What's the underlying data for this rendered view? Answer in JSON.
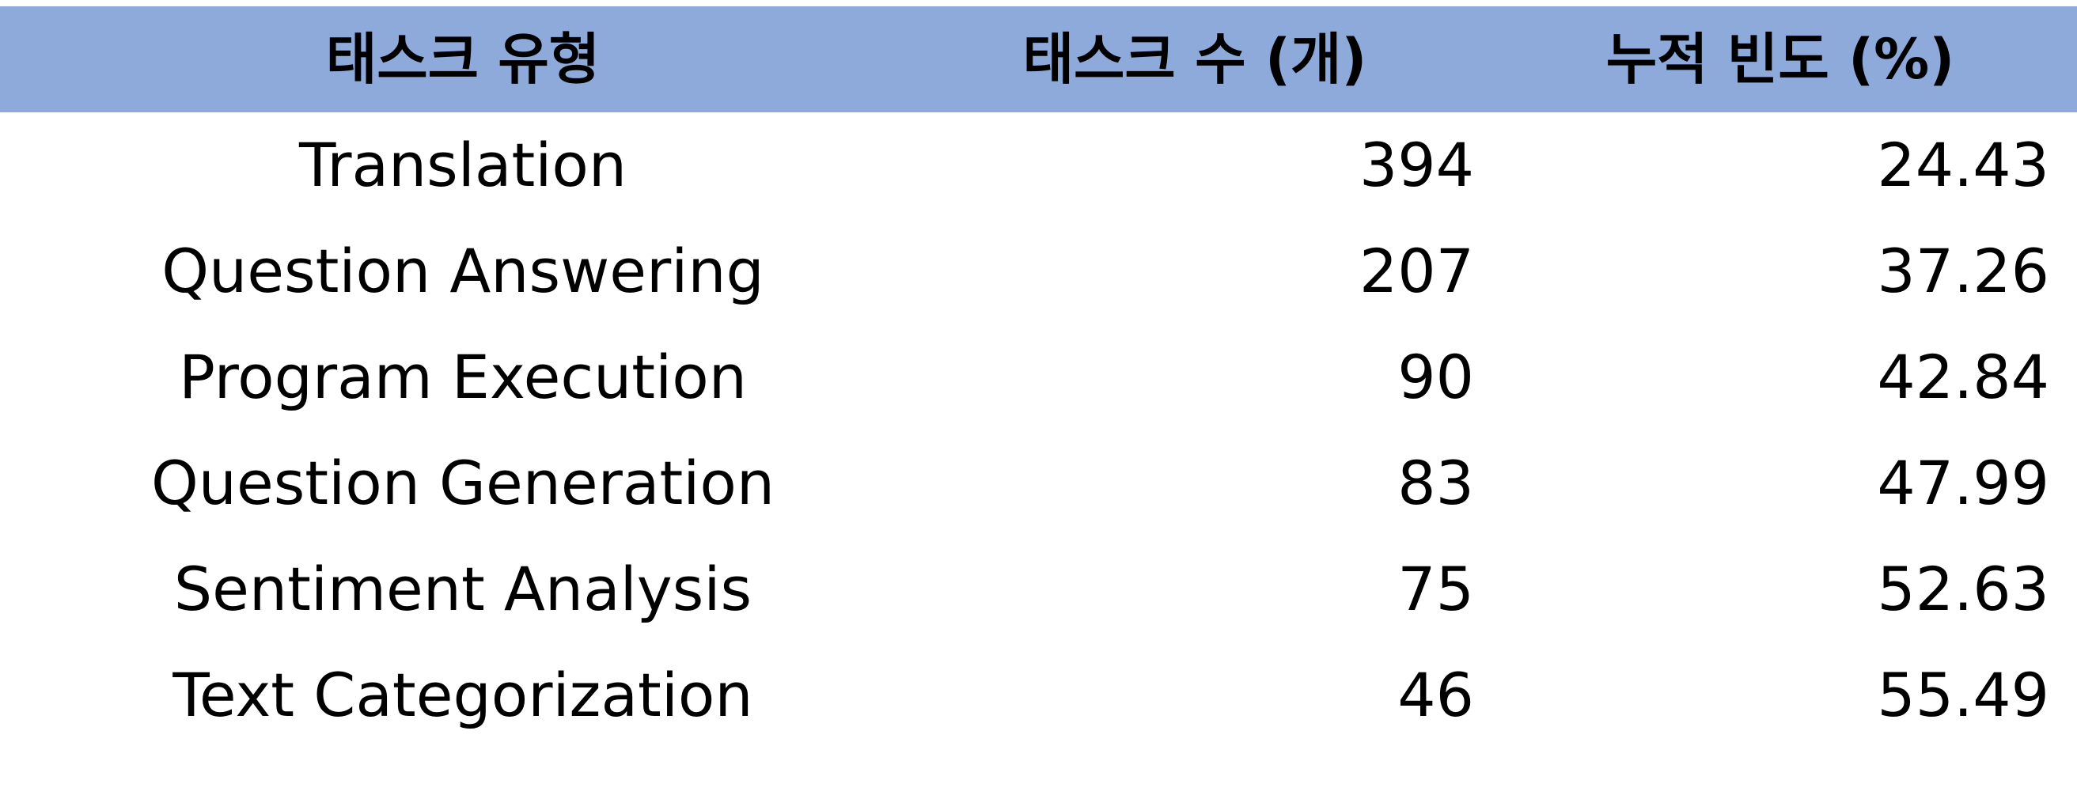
{
  "table": {
    "headers": [
      "태스크 유형",
      "태스크 수 (개)",
      "누적 빈도 (%)"
    ],
    "rows": [
      [
        "Translation",
        "394",
        "24.43"
      ],
      [
        "Question Answering",
        "207",
        "37.26"
      ],
      [
        "Program Execution",
        "90",
        "42.84"
      ],
      [
        "Question Generation",
        "83",
        "47.99"
      ],
      [
        "Sentiment Analysis",
        "75",
        "52.63"
      ],
      [
        "Text Categorization",
        "46",
        "55.49"
      ]
    ]
  },
  "colors": {
    "header_background": "#8eaadb",
    "text": "#000000",
    "background": "#ffffff"
  }
}
